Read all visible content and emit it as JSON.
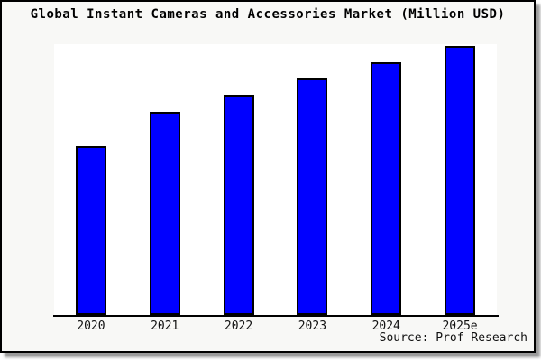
{
  "title": "Global Instant Cameras and Accessories Market (Million USD)",
  "source": "Source: Prof Research",
  "colors": {
    "bar_fill": "#0000ff",
    "bar_border": "#000000",
    "frame_background": "#f8f8f6",
    "plot_background": "#ffffff",
    "axis": "#000000",
    "shadow": "#9a9a9a"
  },
  "chart_data": {
    "type": "bar",
    "title": "Global Instant Cameras and Accessories Market (Million USD)",
    "categories": [
      "2020",
      "2021",
      "2022",
      "2023",
      "2024",
      "2025e"
    ],
    "values": [
      62.8,
      75.2,
      81.6,
      87.8,
      93.8,
      100
    ],
    "value_scale": "relative index estimated from bar heights, 2025e = 100 (no y-axis labels shown)",
    "xlabel": "",
    "ylabel": "",
    "ylim": [
      0,
      100.5
    ],
    "grid": false,
    "legend": false,
    "annotations": [
      "Source: Prof Research"
    ]
  }
}
